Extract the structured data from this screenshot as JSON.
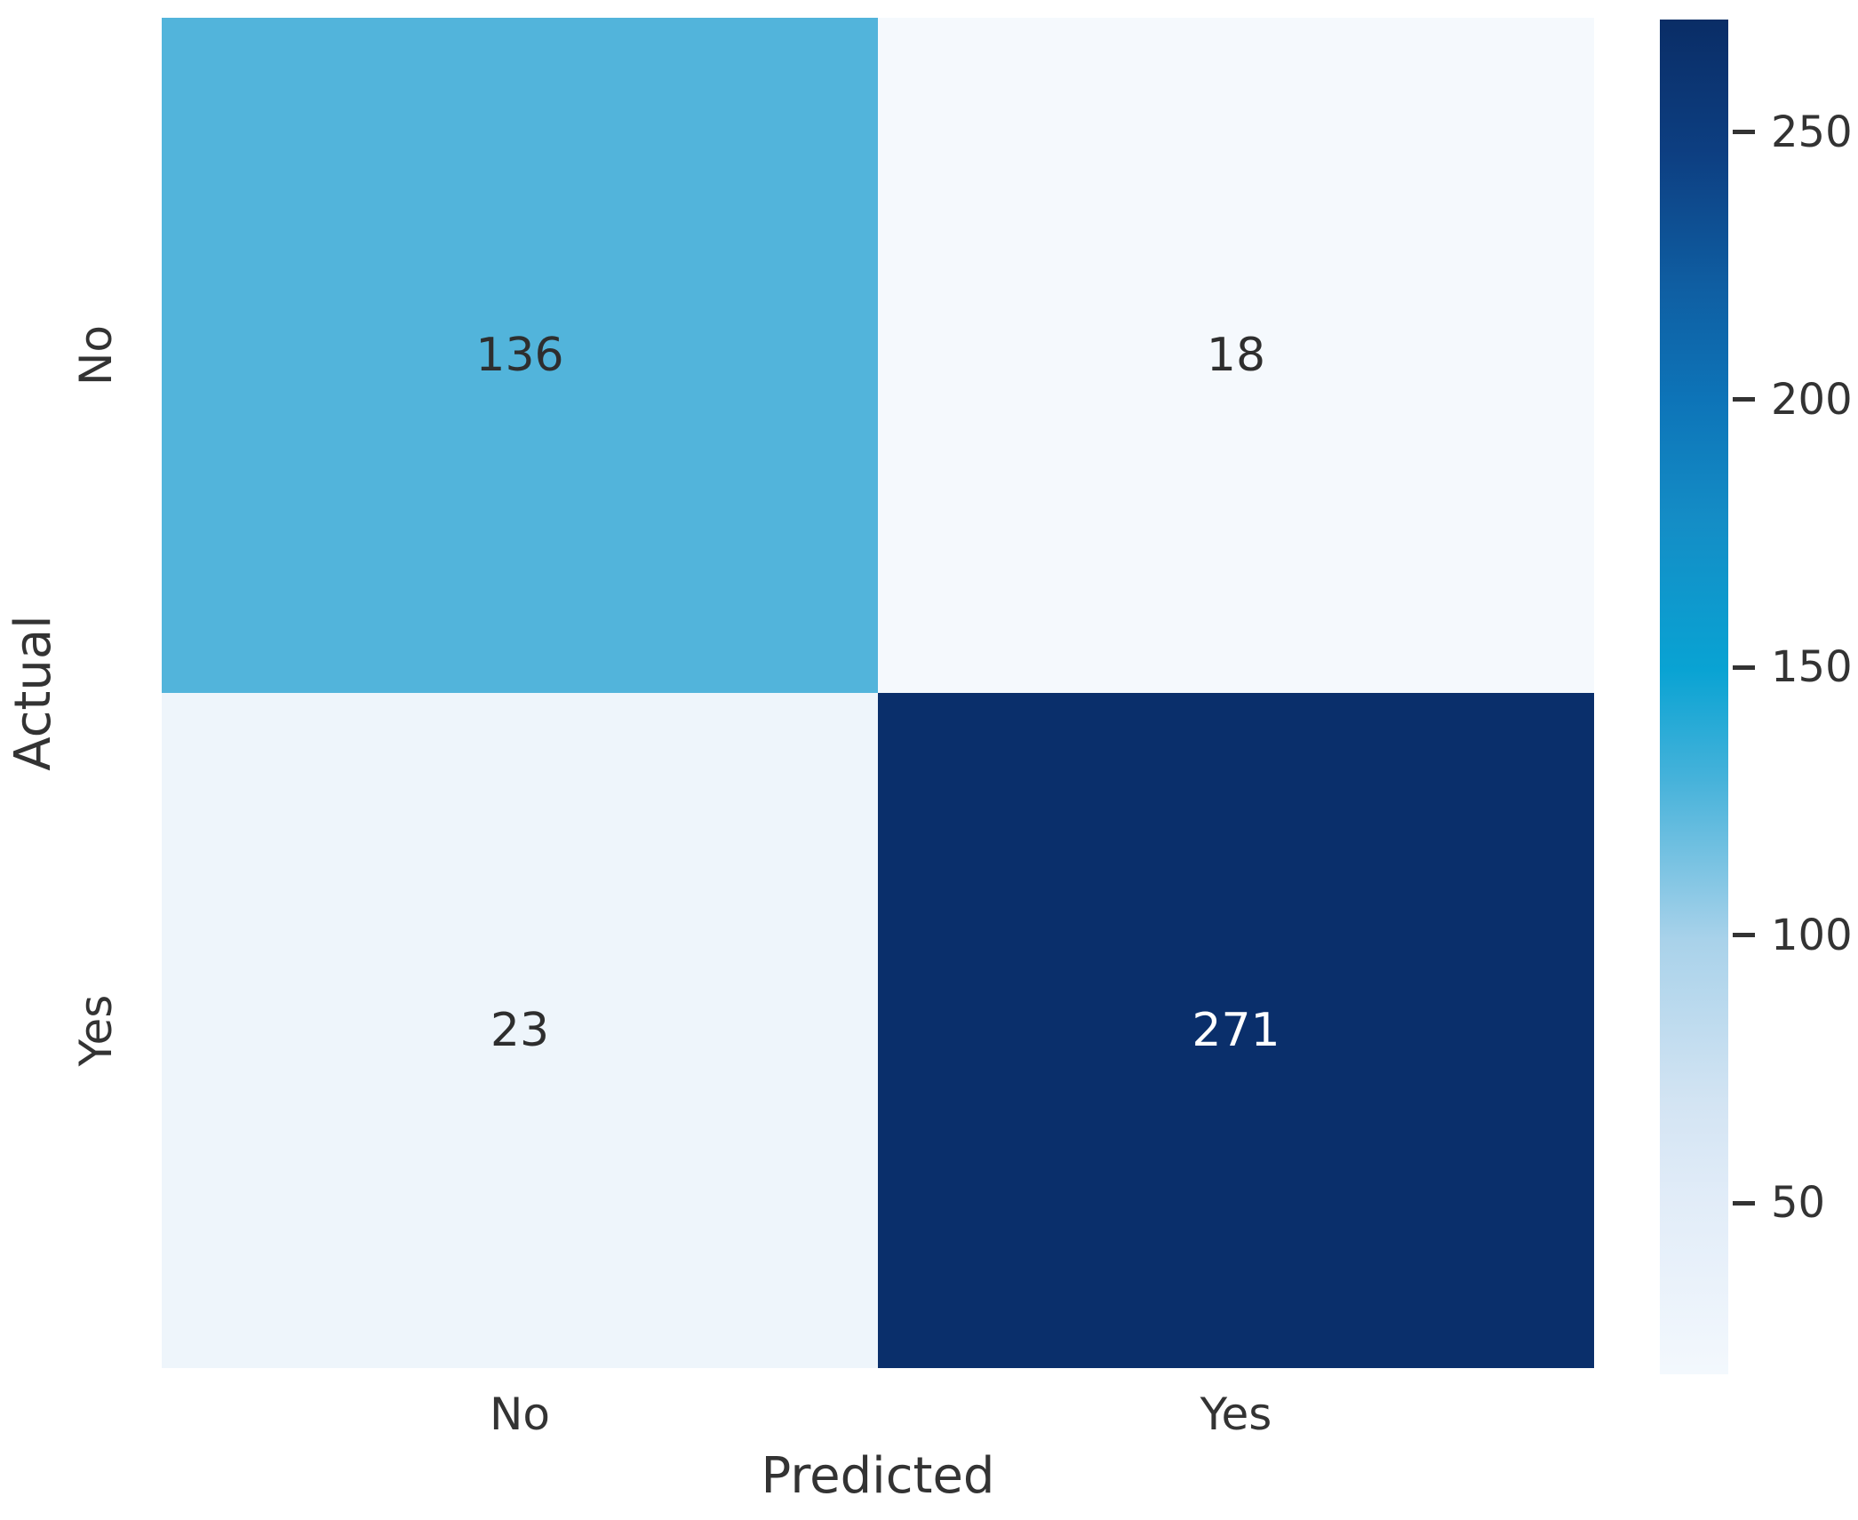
{
  "figure": {
    "background": "#ffffff",
    "axis_text_color": "#333333"
  },
  "chart_data": {
    "type": "heatmap",
    "title": "",
    "xlabel": "Predicted",
    "ylabel": "Actual",
    "x_categories": [
      "No",
      "Yes"
    ],
    "y_categories": [
      "No",
      "Yes"
    ],
    "matrix": [
      [
        136,
        18
      ],
      [
        23,
        271
      ]
    ],
    "cell_colors": [
      [
        "#52b4db",
        "#f5f9fd"
      ],
      [
        "#eef5fb",
        "#0a2f6b"
      ]
    ],
    "cell_text_colors": [
      [
        "#2e2e2e",
        "#2e2e2e"
      ],
      [
        "#2e2e2e",
        "#ffffff"
      ]
    ],
    "grid": false,
    "legend_position": "right-colorbar",
    "colorbar": {
      "vmin": 18,
      "vmax": 271,
      "ticks": [
        250,
        200,
        150,
        100,
        50
      ],
      "gradient": [
        {
          "pos": 0,
          "color": "#0a2d66"
        },
        {
          "pos": 10,
          "color": "#0d3f82"
        },
        {
          "pos": 20,
          "color": "#0f5fa3"
        },
        {
          "pos": 28,
          "color": "#0d74b8"
        },
        {
          "pos": 37,
          "color": "#148dc6"
        },
        {
          "pos": 48,
          "color": "#09a3d3"
        },
        {
          "pos": 56,
          "color": "#45b2da"
        },
        {
          "pos": 68,
          "color": "#a9d2ea"
        },
        {
          "pos": 80,
          "color": "#d3e4f3"
        },
        {
          "pos": 87,
          "color": "#e1ecf8"
        },
        {
          "pos": 100,
          "color": "#f3f8fd"
        }
      ]
    }
  }
}
